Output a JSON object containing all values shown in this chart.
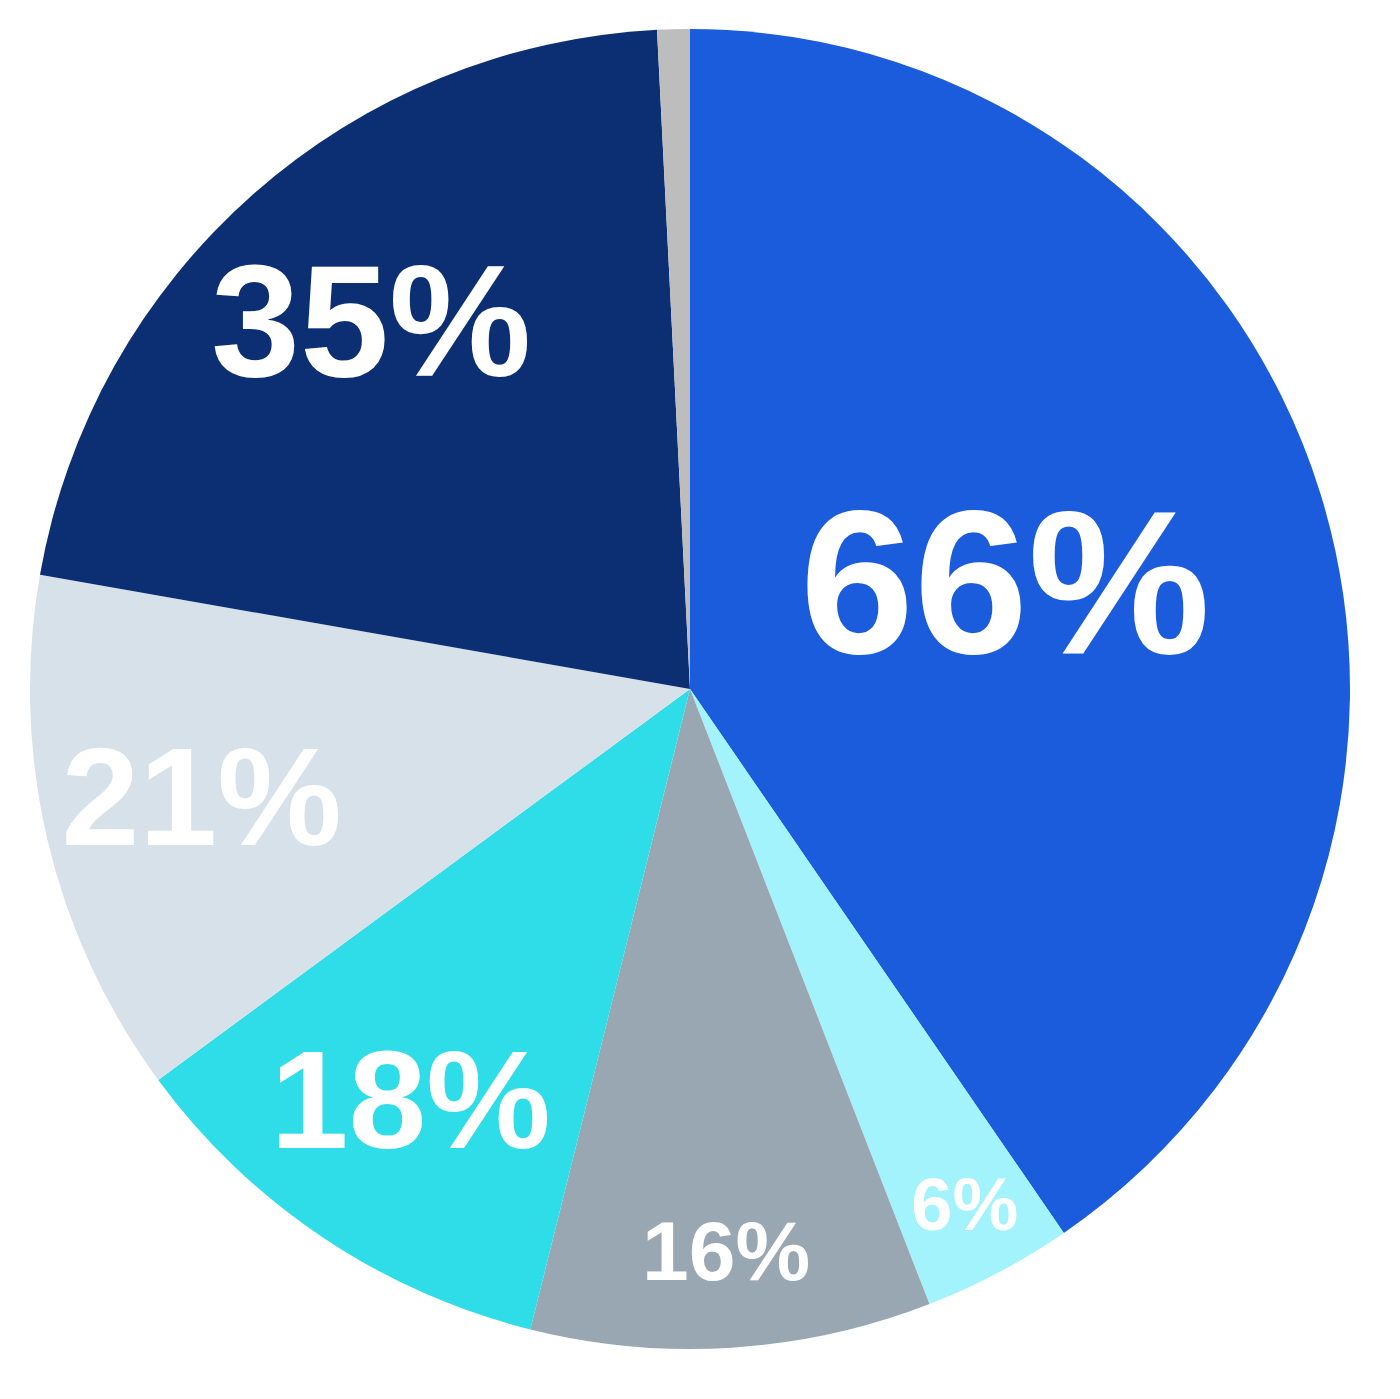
{
  "chart_data": {
    "type": "pie",
    "categories": [
      null,
      null,
      null,
      null,
      null,
      null,
      null
    ],
    "values": [
      66,
      6,
      16,
      18,
      21,
      35,
      1.3
    ],
    "colors": [
      "#1a5cdb",
      "#a2f3fb",
      "#99a7b3",
      "#2edde8",
      "#d7e1ea",
      "#0c2f73",
      "#bdbdbd"
    ],
    "value_labels": [
      "66%",
      "6%",
      "16%",
      "18%",
      "21%",
      "35%",
      null
    ]
  }
}
